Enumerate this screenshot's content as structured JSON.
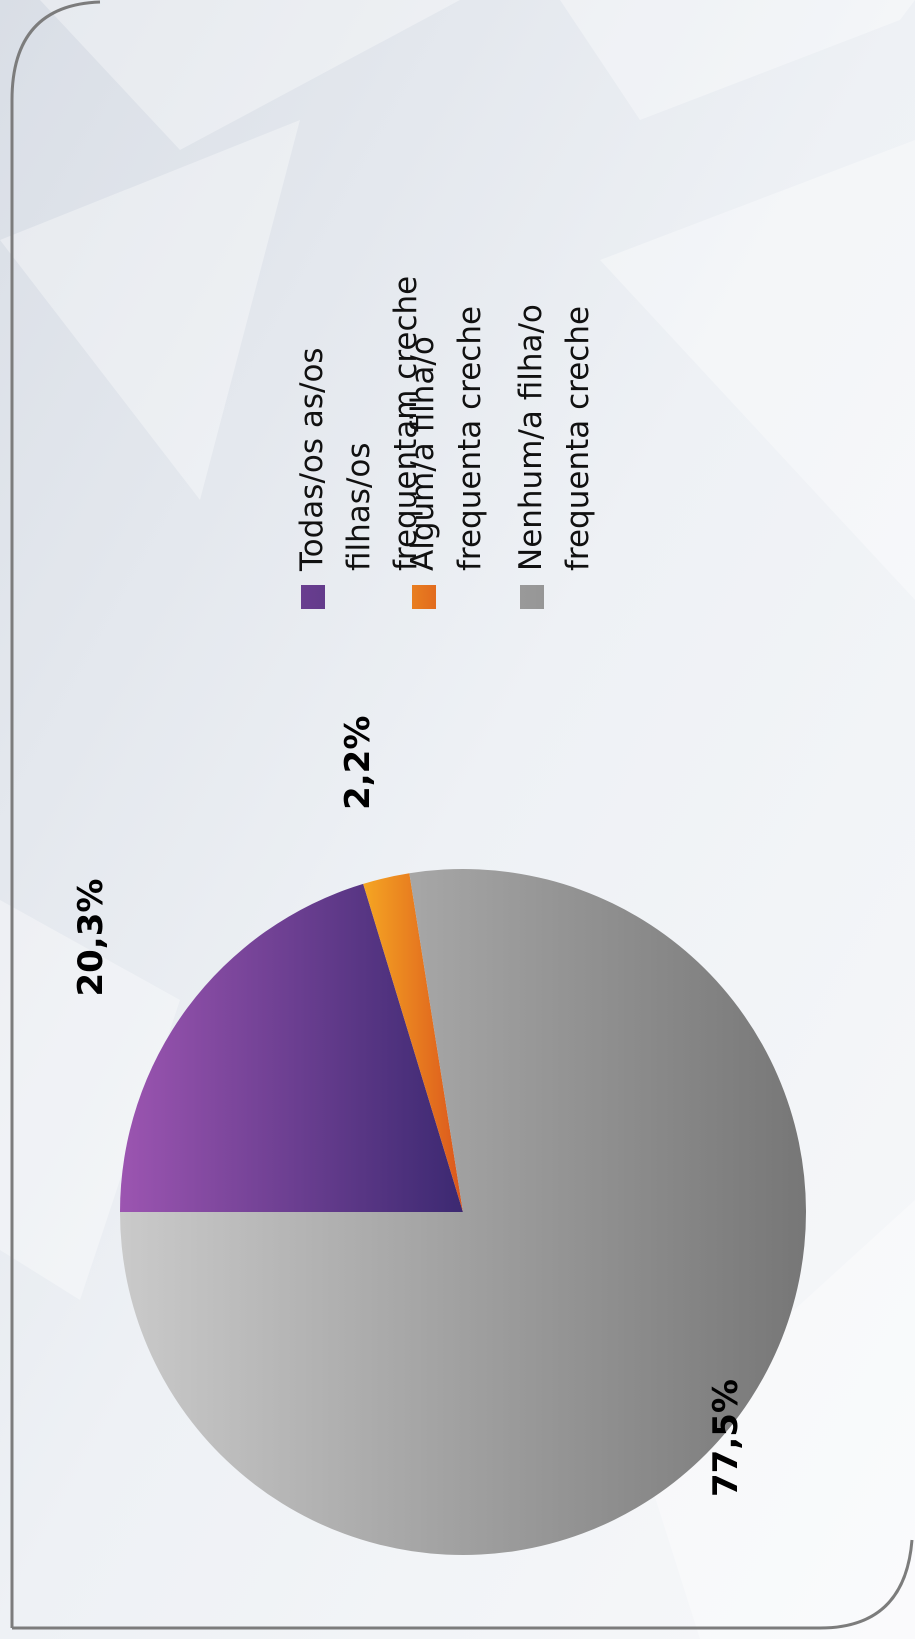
{
  "chart_data": {
    "type": "pie",
    "categories": [
      "Todas/os as/os filhas/os frequentam creche",
      "Algum/a filha/o frequenta creche",
      "Nenhum/a filha/o frequenta creche"
    ],
    "values": [
      20.3,
      2.2,
      77.5
    ],
    "value_labels": [
      "20,3%",
      "2,2%",
      "77,5%"
    ],
    "colors": [
      "#6a3a96",
      "#ec7a1c",
      "#a0a0a0"
    ],
    "legend": "top"
  }
}
